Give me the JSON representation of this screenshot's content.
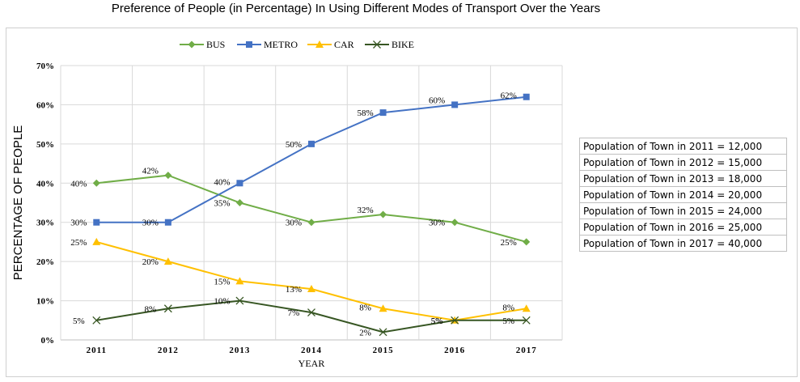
{
  "chart_data": {
    "type": "line",
    "title": "Preference of People (in Percentage) In Using Different Modes of Transport Over the Years",
    "xlabel": "YEAR",
    "ylabel": "PERCENTAGE OF PEOPLE",
    "categories": [
      "2011",
      "2012",
      "2013",
      "2014",
      "2015",
      "2016",
      "2017"
    ],
    "ylim": [
      0,
      70
    ],
    "yticks": [
      "0%",
      "10%",
      "20%",
      "30%",
      "40%",
      "50%",
      "60%",
      "70%"
    ],
    "grid": true,
    "legend_position": "top",
    "series": [
      {
        "name": "BUS",
        "color": "#70ad47",
        "marker": "diamond",
        "values": [
          40,
          42,
          35,
          30,
          32,
          30,
          25
        ],
        "labels": [
          "40%",
          "42%",
          "35%",
          "30%",
          "32%",
          "30%",
          "25%"
        ]
      },
      {
        "name": "METRO",
        "color": "#4472c4",
        "marker": "square",
        "values": [
          30,
          30,
          40,
          50,
          58,
          60,
          62
        ],
        "labels": [
          "30%",
          "30%",
          "40%",
          "50%",
          "58%",
          "60%",
          "62%"
        ]
      },
      {
        "name": "CAR",
        "color": "#ffc000",
        "marker": "triangle",
        "values": [
          25,
          20,
          15,
          13,
          8,
          5,
          8
        ],
        "labels": [
          "25%",
          "20%",
          "15%",
          "13%",
          "8%",
          "5%",
          "8%"
        ]
      },
      {
        "name": "BIKE",
        "color": "#375623",
        "marker": "x",
        "values": [
          5,
          8,
          10,
          7,
          2,
          5,
          5
        ],
        "labels": [
          "5%",
          "8%",
          "10%",
          "7%",
          "2%",
          "5%",
          "5%"
        ]
      }
    ]
  },
  "population_table": [
    "Population of Town in 2011 = 12,000",
    "Population of Town in 2012 = 15,000",
    "Population of Town in 2013 = 18,000",
    "Population of Town in 2014 = 20,000",
    "Population of Town in 2015 = 24,000",
    "Population of Town in 2016 = 25,000",
    "Population of Town in 2017 = 40,000"
  ]
}
